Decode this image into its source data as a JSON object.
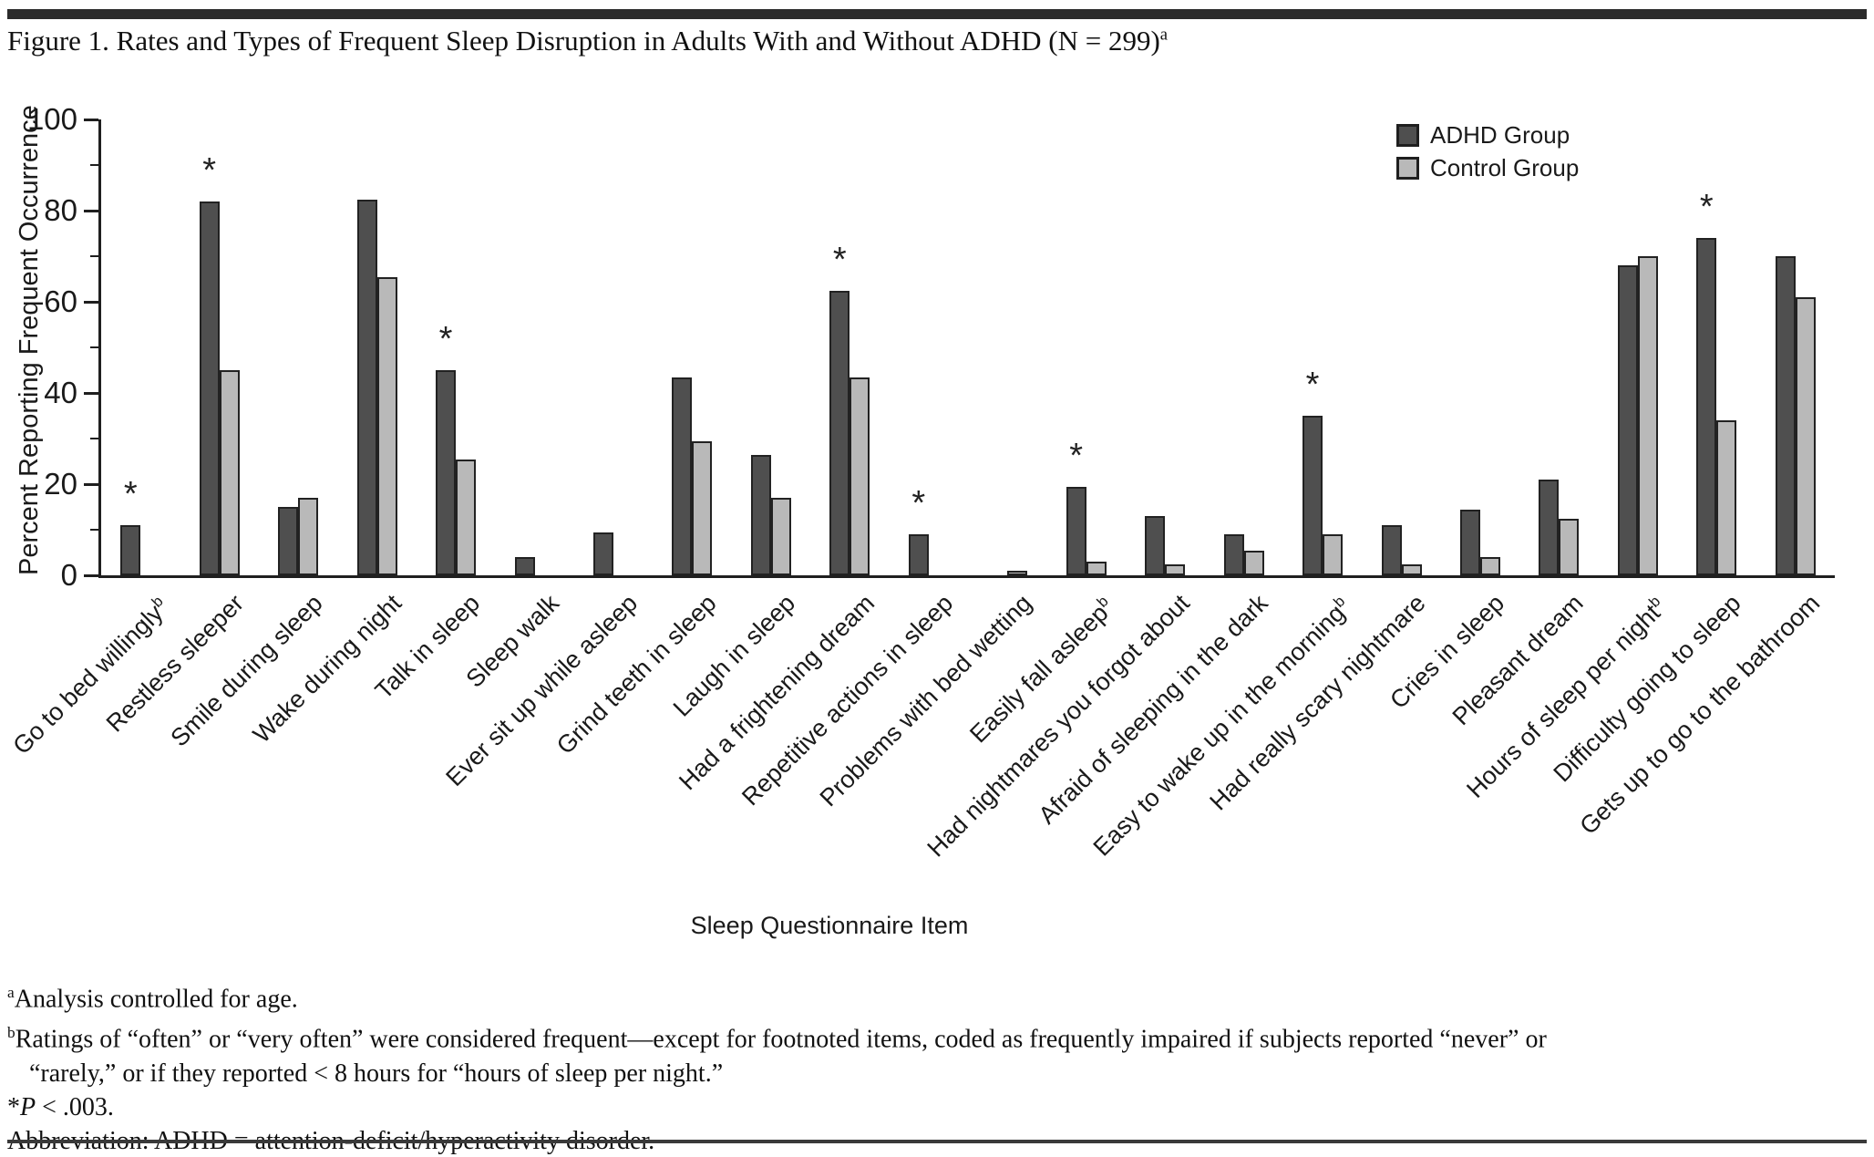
{
  "page": {
    "title": "Figure 1. Rates and Types of Frequent Sleep Disruption in Adults With and Without ADHD (N = 299)",
    "title_sup": "a"
  },
  "chart_data": {
    "type": "bar",
    "title": "Figure 1. Rates and Types of Frequent Sleep Disruption in Adults With and Without ADHD (N = 299)",
    "xlabel": "Sleep Questionnaire Item",
    "ylabel": "Percent Reporting Frequent Occurrence",
    "ylim": [
      0,
      100
    ],
    "yticks": [
      0,
      20,
      40,
      60,
      80,
      100
    ],
    "minor_tick_step": 10,
    "grid": false,
    "legend_position": "top-right",
    "significance_marker": "*",
    "significance_note": "*P < .003.",
    "categories": [
      {
        "label": "Go to bed willingly",
        "sup": "b"
      },
      {
        "label": "Restless sleeper",
        "sup": ""
      },
      {
        "label": "Smile during sleep",
        "sup": ""
      },
      {
        "label": "Wake during night",
        "sup": ""
      },
      {
        "label": "Talk in sleep",
        "sup": ""
      },
      {
        "label": "Sleep walk",
        "sup": ""
      },
      {
        "label": "Ever sit up while asleep",
        "sup": ""
      },
      {
        "label": "Grind teeth in sleep",
        "sup": ""
      },
      {
        "label": "Laugh in sleep",
        "sup": ""
      },
      {
        "label": "Had a frightening dream",
        "sup": ""
      },
      {
        "label": "Repetitive actions in sleep",
        "sup": ""
      },
      {
        "label": "Problems with bed wetting",
        "sup": ""
      },
      {
        "label": "Easily fall asleep",
        "sup": "b"
      },
      {
        "label": "Had nightmares you forgot about",
        "sup": ""
      },
      {
        "label": "Afraid of sleeping in the dark",
        "sup": ""
      },
      {
        "label": "Easy to wake up in the morning",
        "sup": "b"
      },
      {
        "label": "Had really scary nightmare",
        "sup": ""
      },
      {
        "label": "Cries in sleep",
        "sup": ""
      },
      {
        "label": "Pleasant dream",
        "sup": ""
      },
      {
        "label": "Hours of sleep per night",
        "sup": "b"
      },
      {
        "label": "Difficulty going to sleep",
        "sup": ""
      },
      {
        "label": "Gets up to go to the bathroom",
        "sup": ""
      }
    ],
    "series": [
      {
        "name": "ADHD Group",
        "color": "#4f4f4f",
        "values": [
          11,
          82,
          15,
          82.5,
          45,
          4,
          9.5,
          43.5,
          26.5,
          62.5,
          9,
          0,
          19.5,
          13,
          9,
          35,
          11,
          14.5,
          21,
          68,
          74,
          70
        ]
      },
      {
        "name": "Control Group",
        "color": "#b9b9b9",
        "values": [
          0,
          45,
          17,
          65.5,
          25.5,
          0,
          0,
          29.5,
          17,
          43.5,
          0,
          1,
          3,
          2.5,
          5.5,
          9,
          2.5,
          4,
          12.5,
          70,
          34,
          61
        ]
      }
    ],
    "significant": [
      true,
      true,
      false,
      false,
      true,
      false,
      false,
      false,
      false,
      true,
      true,
      false,
      true,
      false,
      false,
      true,
      false,
      false,
      false,
      false,
      true,
      false
    ]
  },
  "footnotes": {
    "a_sup": "a",
    "a_text": "Analysis controlled for age.",
    "b_sup": "b",
    "b_line1": "Ratings of “often” or “very often” were considered frequent—except for footnoted items, coded as frequently impaired if subjects reported “never” or",
    "b_line2": "“rarely,” or if they reported < 8 hours for “hours of sleep per night.”",
    "sig_star": "*",
    "sig_p": "P",
    "sig_rest": " < .003.",
    "abbreviation": "Abbreviation: ADHD = attention-deficit/hyperactivity disorder."
  }
}
